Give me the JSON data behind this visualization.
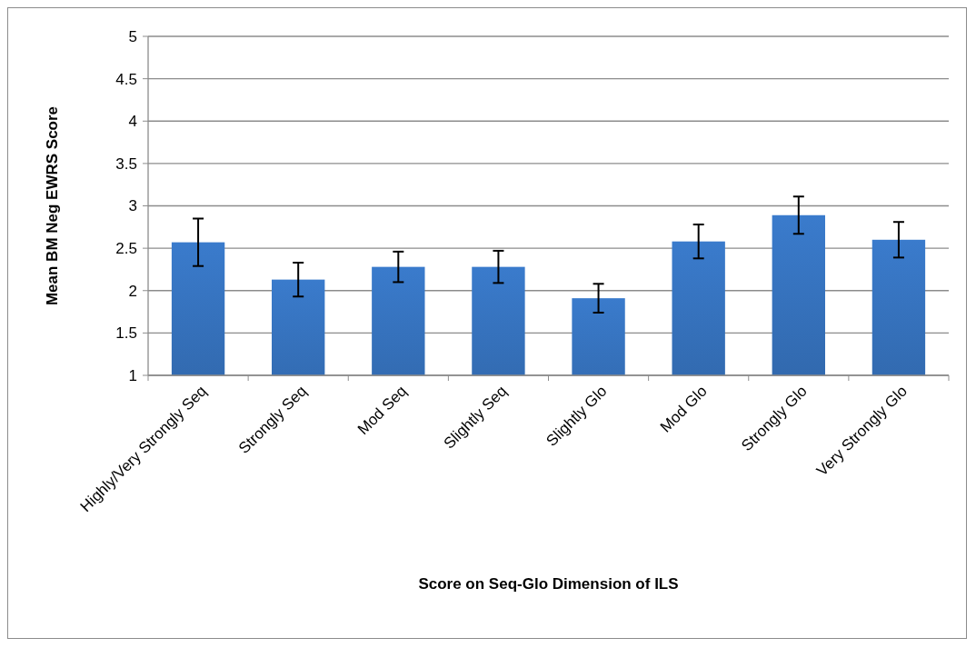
{
  "chart_data": {
    "type": "bar",
    "xlabel": "Score on Seq-Glo Dimension of ILS",
    "ylabel": "Mean BM Neg EWRS Score",
    "categories": [
      "Highly/Very Strongly Seq",
      "Strongly Seq",
      "Mod Seq",
      "Slightly Seq",
      "Slightly Glo",
      "Mod Glo",
      "Strongly Glo",
      "Very Strongly Glo"
    ],
    "values": [
      2.57,
      2.13,
      2.28,
      2.28,
      1.91,
      2.58,
      2.89,
      2.6
    ],
    "errors": [
      0.28,
      0.2,
      0.18,
      0.19,
      0.17,
      0.2,
      0.22,
      0.21
    ],
    "color": "#3a7bcc",
    "ylim": [
      1,
      5
    ],
    "yticks": [
      1,
      1.5,
      2,
      2.5,
      3,
      3.5,
      4,
      4.5,
      5
    ],
    "grid": "y"
  }
}
